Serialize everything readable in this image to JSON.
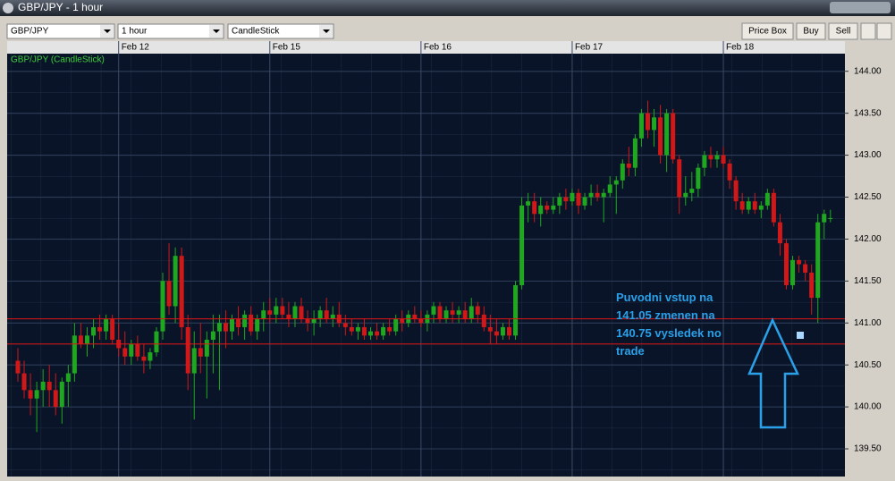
{
  "window": {
    "title": "GBP/JPY - 1 hour"
  },
  "toolbar": {
    "symbol": "GBP/JPY",
    "interval": "1 hour",
    "style": "CandleStick",
    "buttons": [
      "Price Box",
      "Buy",
      "Sell"
    ]
  },
  "chart_data": {
    "type": "candlestick",
    "title": "GBP/JPY (CandleStick)",
    "up_color": "#1fa81f",
    "down_color": "#d01818",
    "xlim": [
      -1.7,
      131.3
    ],
    "xticks": [
      {
        "value": 16,
        "label": "Feb 12"
      },
      {
        "value": 40,
        "label": "Feb 15"
      },
      {
        "value": 64,
        "label": "Feb 16"
      },
      {
        "value": 88,
        "label": "Feb 17"
      },
      {
        "value": 112,
        "label": "Feb 18"
      }
    ],
    "ylim": [
      139.17,
      144.21
    ],
    "yticks": [
      {
        "value": 139.5,
        "label": "139.50"
      },
      {
        "value": 140,
        "label": "140.00"
      },
      {
        "value": 140.5,
        "label": "140.50"
      },
      {
        "value": 141,
        "label": "141.00"
      },
      {
        "value": 141.5,
        "label": "141.50"
      },
      {
        "value": 142,
        "label": "142.00"
      },
      {
        "value": 142.5,
        "label": "142.50"
      },
      {
        "value": 143,
        "label": "143.00"
      },
      {
        "value": 143.5,
        "label": "143.50"
      },
      {
        "value": 144,
        "label": "144.00"
      }
    ],
    "grid": true,
    "hlines": [
      {
        "value": 141.05,
        "color": "#e01414"
      },
      {
        "value": 140.75,
        "color": "#e01414"
      }
    ],
    "annotation": [
      "Puvodni vstup na",
      "141.05 zmenen na",
      "140.75 vysledek no",
      "trade"
    ],
    "ohlc": [
      [
        140.55,
        140.7,
        140.3,
        140.4
      ],
      [
        140.4,
        140.55,
        140.1,
        140.2
      ],
      [
        140.2,
        140.4,
        139.9,
        140.1
      ],
      [
        140.1,
        140.3,
        139.7,
        140.2
      ],
      [
        140.2,
        140.45,
        140.0,
        140.3
      ],
      [
        140.3,
        140.5,
        140.0,
        140.2
      ],
      [
        140.2,
        140.4,
        139.9,
        140.0
      ],
      [
        140.0,
        140.35,
        139.8,
        140.3
      ],
      [
        140.3,
        140.5,
        140.0,
        140.4
      ],
      [
        140.4,
        141.0,
        140.3,
        140.85
      ],
      [
        140.85,
        141.0,
        140.7,
        140.75
      ],
      [
        140.75,
        140.95,
        140.6,
        140.85
      ],
      [
        140.85,
        141.05,
        140.7,
        140.95
      ],
      [
        140.95,
        141.1,
        140.8,
        140.9
      ],
      [
        140.9,
        141.1,
        140.8,
        141.05
      ],
      [
        141.05,
        141.1,
        140.75,
        140.8
      ],
      [
        140.8,
        141.0,
        140.6,
        140.7
      ],
      [
        140.7,
        140.9,
        140.5,
        140.6
      ],
      [
        140.6,
        140.8,
        140.5,
        140.75
      ],
      [
        140.75,
        140.85,
        140.55,
        140.6
      ],
      [
        140.6,
        140.75,
        140.4,
        140.55
      ],
      [
        140.55,
        140.7,
        140.45,
        140.65
      ],
      [
        140.65,
        140.95,
        140.6,
        140.9
      ],
      [
        140.9,
        141.6,
        140.8,
        141.5
      ],
      [
        141.5,
        141.95,
        141.1,
        141.2
      ],
      [
        141.2,
        141.9,
        141.0,
        141.8
      ],
      [
        141.8,
        141.9,
        140.8,
        140.95
      ],
      [
        140.95,
        141.1,
        140.2,
        140.4
      ],
      [
        140.4,
        140.9,
        139.85,
        140.7
      ],
      [
        140.7,
        141.0,
        140.4,
        140.6
      ],
      [
        140.6,
        140.9,
        140.1,
        140.8
      ],
      [
        140.8,
        141.1,
        140.4,
        140.9
      ],
      [
        140.9,
        141.1,
        140.2,
        141.0
      ],
      [
        141.0,
        141.15,
        140.7,
        140.9
      ],
      [
        140.9,
        141.1,
        140.8,
        141.05
      ],
      [
        141.05,
        141.2,
        140.85,
        140.95
      ],
      [
        140.95,
        141.15,
        140.8,
        141.1
      ],
      [
        141.1,
        141.2,
        140.85,
        140.9
      ],
      [
        140.9,
        141.1,
        140.8,
        141.05
      ],
      [
        141.05,
        141.25,
        140.9,
        141.15
      ],
      [
        141.15,
        141.3,
        141.0,
        141.1
      ],
      [
        141.1,
        141.3,
        141.0,
        141.2
      ],
      [
        141.2,
        141.3,
        141.05,
        141.1
      ],
      [
        141.1,
        141.25,
        140.95,
        141.05
      ],
      [
        141.05,
        141.25,
        140.95,
        141.2
      ],
      [
        141.2,
        141.3,
        141.0,
        141.05
      ],
      [
        141.05,
        141.15,
        140.9,
        141.0
      ],
      [
        141.0,
        141.15,
        140.85,
        141.05
      ],
      [
        141.05,
        141.2,
        140.95,
        141.15
      ],
      [
        141.15,
        141.3,
        141.0,
        141.05
      ],
      [
        141.05,
        141.2,
        140.95,
        141.1
      ],
      [
        141.1,
        141.25,
        140.95,
        141.0
      ],
      [
        141.0,
        141.1,
        140.85,
        140.95
      ],
      [
        140.95,
        141.05,
        140.85,
        140.9
      ],
      [
        140.9,
        141.0,
        140.8,
        140.95
      ],
      [
        140.95,
        141.05,
        140.8,
        140.85
      ],
      [
        140.85,
        140.95,
        140.8,
        140.9
      ],
      [
        140.9,
        141.0,
        140.8,
        140.85
      ],
      [
        140.85,
        141.0,
        140.8,
        140.95
      ],
      [
        140.95,
        141.05,
        140.85,
        140.9
      ],
      [
        140.9,
        141.1,
        140.85,
        141.05
      ],
      [
        141.05,
        141.15,
        140.9,
        141.0
      ],
      [
        141.0,
        141.15,
        140.95,
        141.1
      ],
      [
        141.1,
        141.2,
        141.0,
        141.05
      ],
      [
        141.05,
        141.15,
        140.95,
        141.0
      ],
      [
        141.0,
        141.15,
        140.9,
        141.1
      ],
      [
        141.1,
        141.25,
        141.0,
        141.2
      ],
      [
        141.2,
        141.25,
        141.0,
        141.05
      ],
      [
        141.05,
        141.2,
        141.0,
        141.15
      ],
      [
        141.15,
        141.25,
        141.0,
        141.1
      ],
      [
        141.1,
        141.2,
        141.0,
        141.15
      ],
      [
        141.15,
        141.25,
        141.0,
        141.05
      ],
      [
        141.05,
        141.3,
        141.0,
        141.2
      ],
      [
        141.2,
        141.25,
        141.0,
        141.1
      ],
      [
        141.1,
        141.2,
        140.9,
        140.95
      ],
      [
        140.95,
        141.1,
        140.75,
        140.9
      ],
      [
        140.9,
        141.05,
        140.75,
        140.85
      ],
      [
        140.85,
        141.0,
        140.8,
        140.95
      ],
      [
        140.95,
        141.05,
        140.8,
        140.85
      ],
      [
        140.85,
        141.5,
        140.8,
        141.45
      ],
      [
        141.45,
        142.5,
        141.4,
        142.4
      ],
      [
        142.4,
        142.55,
        142.2,
        142.45
      ],
      [
        142.45,
        142.55,
        142.2,
        142.3
      ],
      [
        142.3,
        142.5,
        142.15,
        142.4
      ],
      [
        142.4,
        142.45,
        142.3,
        142.35
      ],
      [
        142.35,
        142.5,
        142.3,
        142.4
      ],
      [
        142.4,
        142.55,
        142.3,
        142.5
      ],
      [
        142.5,
        142.6,
        142.35,
        142.45
      ],
      [
        142.45,
        142.6,
        142.4,
        142.55
      ],
      [
        142.55,
        142.6,
        142.3,
        142.4
      ],
      [
        142.4,
        142.55,
        142.35,
        142.5
      ],
      [
        142.5,
        142.65,
        142.4,
        142.55
      ],
      [
        142.55,
        142.65,
        142.45,
        142.5
      ],
      [
        142.5,
        142.6,
        142.2,
        142.55
      ],
      [
        142.55,
        142.75,
        142.5,
        142.65
      ],
      [
        142.65,
        142.75,
        142.3,
        142.7
      ],
      [
        142.7,
        142.95,
        142.6,
        142.9
      ],
      [
        142.9,
        143.1,
        142.75,
        142.85
      ],
      [
        142.85,
        143.25,
        142.75,
        143.2
      ],
      [
        143.2,
        143.55,
        143.1,
        143.5
      ],
      [
        143.5,
        143.65,
        143.2,
        143.3
      ],
      [
        143.3,
        143.55,
        143.1,
        143.45
      ],
      [
        143.45,
        143.6,
        142.9,
        143.0
      ],
      [
        143.0,
        143.55,
        142.8,
        143.5
      ],
      [
        143.5,
        143.55,
        142.9,
        142.95
      ],
      [
        142.95,
        143.0,
        142.3,
        142.5
      ],
      [
        142.5,
        142.75,
        142.4,
        142.55
      ],
      [
        142.55,
        142.8,
        142.45,
        142.6
      ],
      [
        142.6,
        142.9,
        142.5,
        142.85
      ],
      [
        142.85,
        143.05,
        142.75,
        143.0
      ],
      [
        143.0,
        143.1,
        142.85,
        142.95
      ],
      [
        142.95,
        143.05,
        142.85,
        143.0
      ],
      [
        143.0,
        143.1,
        142.85,
        142.9
      ],
      [
        142.9,
        142.95,
        142.6,
        142.7
      ],
      [
        142.7,
        142.75,
        142.35,
        142.45
      ],
      [
        142.45,
        142.55,
        142.3,
        142.35
      ],
      [
        142.35,
        142.5,
        142.3,
        142.45
      ],
      [
        142.45,
        142.55,
        142.3,
        142.35
      ],
      [
        142.35,
        142.45,
        142.25,
        142.4
      ],
      [
        142.4,
        142.6,
        142.35,
        142.55
      ],
      [
        142.55,
        142.6,
        142.15,
        142.2
      ],
      [
        142.2,
        142.3,
        141.8,
        141.95
      ],
      [
        141.95,
        142.0,
        141.4,
        141.45
      ],
      [
        141.45,
        141.8,
        141.4,
        141.75
      ],
      [
        141.75,
        141.8,
        141.6,
        141.7
      ],
      [
        141.7,
        141.75,
        141.5,
        141.6
      ],
      [
        141.6,
        141.7,
        141.1,
        141.3
      ],
      [
        141.3,
        142.3,
        141.0,
        142.2
      ],
      [
        142.2,
        142.35,
        142.0,
        142.3
      ],
      [
        142.25,
        142.35,
        142.2,
        142.25
      ]
    ]
  }
}
